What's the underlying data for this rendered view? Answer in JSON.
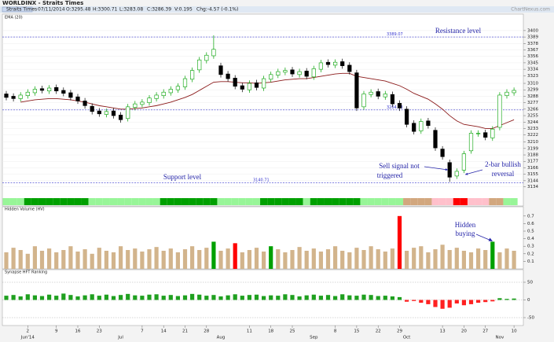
{
  "header": {
    "title": "WORLDINX - Straits Times",
    "source": "ChartNexus.com",
    "fields": [
      "Straits Times",
      "07/11/2014",
      "O:3295.48",
      "H:3300.71",
      "L:3283.08",
      "C:3286.39",
      "V:0.195",
      "Chg:-4.57 (-0.1%)"
    ]
  },
  "chart_data": [
    {
      "type": "candlestick",
      "up_color": "#00a000",
      "down_color": "#000000",
      "open": [
        3292,
        3288,
        3284,
        3289,
        3294,
        3301,
        3297,
        3303,
        3298,
        3294,
        3287,
        3280,
        3271,
        3263,
        3257,
        3263,
        3256,
        3250,
        3269,
        3274,
        3277,
        3284,
        3289,
        3294,
        3299,
        3304,
        3317,
        3333,
        3349,
        3357,
        3340,
        3326,
        3319,
        3306,
        3299,
        3311,
        3302,
        3317,
        3324,
        3329,
        3333,
        3325,
        3331,
        3321,
        3334,
        3346,
        3341,
        3347,
        3341,
        3328,
        3270,
        3291,
        3296,
        3287,
        3291,
        3276,
        3266,
        3242,
        3229,
        3246,
        3230,
        3198,
        3175,
        3152,
        3162,
        3195,
        3224,
        3226,
        3217,
        3235,
        3289,
        3294
      ],
      "high": [
        3297,
        3293,
        3295,
        3300,
        3305,
        3306,
        3307,
        3308,
        3303,
        3299,
        3292,
        3285,
        3276,
        3268,
        3267,
        3268,
        3261,
        3275,
        3280,
        3283,
        3290,
        3295,
        3300,
        3305,
        3310,
        3323,
        3337,
        3355,
        3363,
        3392,
        3345,
        3331,
        3324,
        3311,
        3315,
        3316,
        3323,
        3330,
        3335,
        3337,
        3338,
        3335,
        3336,
        3340,
        3350,
        3351,
        3351,
        3352,
        3346,
        3333,
        3297,
        3300,
        3301,
        3297,
        3296,
        3281,
        3271,
        3247,
        3250,
        3251,
        3235,
        3203,
        3180,
        3165,
        3195,
        3230,
        3230,
        3231,
        3237,
        3295,
        3300,
        3303
      ],
      "low": [
        3281,
        3279,
        3279,
        3284,
        3289,
        3293,
        3292,
        3292,
        3288,
        3281,
        3275,
        3267,
        3257,
        3253,
        3252,
        3250,
        3243,
        3245,
        3264,
        3269,
        3272,
        3279,
        3284,
        3289,
        3294,
        3299,
        3312,
        3328,
        3344,
        3352,
        3320,
        3313,
        3300,
        3295,
        3294,
        3298,
        3297,
        3312,
        3319,
        3324,
        3321,
        3320,
        3317,
        3316,
        3329,
        3337,
        3336,
        3335,
        3325,
        3263,
        3265,
        3286,
        3283,
        3282,
        3270,
        3263,
        3235,
        3223,
        3224,
        3233,
        3195,
        3180,
        3142,
        3147,
        3157,
        3190,
        3219,
        3213,
        3212,
        3230,
        3284,
        3289
      ],
      "close": [
        3286,
        3284,
        3290,
        3295,
        3300,
        3298,
        3302,
        3297,
        3293,
        3286,
        3280,
        3272,
        3262,
        3258,
        3262,
        3255,
        3248,
        3270,
        3275,
        3278,
        3285,
        3290,
        3295,
        3300,
        3305,
        3318,
        3332,
        3350,
        3358,
        3368,
        3325,
        3318,
        3305,
        3300,
        3310,
        3303,
        3318,
        3325,
        3330,
        3332,
        3326,
        3330,
        3322,
        3335,
        3345,
        3342,
        3346,
        3340,
        3330,
        3268,
        3292,
        3295,
        3288,
        3292,
        3275,
        3268,
        3240,
        3228,
        3245,
        3238,
        3200,
        3185,
        3150,
        3160,
        3190,
        3225,
        3225,
        3218,
        3232,
        3290,
        3295,
        3298
      ],
      "series": [
        {
          "name": "EMA (20)",
          "color": "#8b1a1a",
          "values": [
            null,
            null,
            3278,
            3280,
            3282,
            3283,
            3284,
            3284,
            3283,
            3282,
            3280,
            3278,
            3275,
            3272,
            3270,
            3268,
            3266,
            3266,
            3267,
            3268,
            3270,
            3272,
            3275,
            3278,
            3282,
            3286,
            3291,
            3298,
            3305,
            3312,
            3313,
            3313,
            3312,
            3311,
            3311,
            3310,
            3311,
            3312,
            3314,
            3316,
            3317,
            3318,
            3318,
            3320,
            3322,
            3324,
            3326,
            3327,
            3327,
            3322,
            3320,
            3318,
            3316,
            3314,
            3310,
            3306,
            3300,
            3293,
            3288,
            3283,
            3275,
            3266,
            3255,
            3246,
            3240,
            3238,
            3236,
            3233,
            3233,
            3238,
            3243,
            3248
          ]
        }
      ],
      "ylim": [
        3117,
        3428
      ],
      "yticks": [
        3400,
        3389,
        3378,
        3367,
        3356,
        3345,
        3334,
        3323,
        3310,
        3299,
        3288,
        3277,
        3266,
        3255,
        3244,
        3233,
        3222,
        3210,
        3199,
        3188,
        3177,
        3166,
        3155,
        3144,
        3134
      ],
      "grid": true,
      "levels": [
        3389.07,
        3264.73,
        3140.71
      ],
      "level_color": "#3a3ad0",
      "annotations": [
        "Resistance level",
        "Support level",
        "Sell signal not",
        "triggered",
        "2-bar bullish",
        "reversal"
      ],
      "strip_colors": [
        "#98f598",
        "#98f598",
        "#98f598",
        "#00a000",
        "#00a000",
        "#00a000",
        "#00a000",
        "#00a000",
        "#00a000",
        "#00a000",
        "#00a000",
        "#00a000",
        "#98f598",
        "#98f598",
        "#98f598",
        "#98f598",
        "#98f598",
        "#98f598",
        "#98f598",
        "#98f598",
        "#98f598",
        "#98f598",
        "#00a000",
        "#00a000",
        "#00a000",
        "#00a000",
        "#00a000",
        "#00a000",
        "#00a000",
        "#00a000",
        "#98f598",
        "#98f598",
        "#98f598",
        "#98f598",
        "#98f598",
        "#98f598",
        "#00a000",
        "#00a000",
        "#00a000",
        "#00a000",
        "#00a000",
        "#00a000",
        "#98f598",
        "#00a000",
        "#00a000",
        "#00a000",
        "#00a000",
        "#00a000",
        "#00a000",
        "#00a000",
        "#98f598",
        "#98f598",
        "#98f598",
        "#98f598",
        "#98f598",
        "#98f598",
        "#d2a77e",
        "#d2a77e",
        "#d2a77e",
        "#d2a77e",
        "#ffc0cb",
        "#ffc0cb",
        "#ffc0cb",
        "#ff0000",
        "#ff0000",
        "#ffc0cb",
        "#ffc0cb",
        "#ffc0cb",
        "#d2a77e",
        "#d2a77e",
        "#98f598",
        "#98f598"
      ]
    },
    {
      "type": "bar",
      "title": "Hidden Volume (HV)",
      "color": "#d2b48c",
      "highlight_colors": {
        "29": "#00a000",
        "32": "#ff0000",
        "37": "#00a000",
        "55": "#ff0000",
        "68": "#00a000"
      },
      "values": [
        0.22,
        0.28,
        0.25,
        0.2,
        0.3,
        0.24,
        0.27,
        0.22,
        0.25,
        0.3,
        0.23,
        0.26,
        0.2,
        0.28,
        0.24,
        0.22,
        0.3,
        0.25,
        0.27,
        0.23,
        0.26,
        0.29,
        0.24,
        0.27,
        0.22,
        0.26,
        0.3,
        0.25,
        0.28,
        0.36,
        0.24,
        0.27,
        0.34,
        0.22,
        0.25,
        0.28,
        0.23,
        0.3,
        0.26,
        0.22,
        0.25,
        0.29,
        0.24,
        0.27,
        0.23,
        0.26,
        0.3,
        0.24,
        0.22,
        0.28,
        0.25,
        0.3,
        0.26,
        0.23,
        0.27,
        0.7,
        0.24,
        0.28,
        0.3,
        0.22,
        0.26,
        0.32,
        0.25,
        0.28,
        0.24,
        0.22,
        0.27,
        0.25,
        0.36,
        0.22,
        0.27,
        0.24
      ],
      "ylim": [
        0,
        0.75
      ],
      "yticks": [
        0.1,
        0.2,
        0.3,
        0.4,
        0.5,
        0.6,
        0.7
      ],
      "annotations": [
        "Hidden",
        "buying"
      ]
    },
    {
      "type": "bar",
      "title": "Synapse HFT Ranking",
      "up_color": "#1fa01f",
      "down_color": "#ff2020",
      "values": [
        12,
        14,
        10,
        16,
        13,
        11,
        15,
        12,
        18,
        14,
        10,
        13,
        16,
        12,
        15,
        11,
        14,
        17,
        13,
        12,
        15,
        16,
        12,
        14,
        11,
        13,
        17,
        15,
        12,
        14,
        10,
        13,
        16,
        12,
        14,
        15,
        11,
        13,
        12,
        16,
        14,
        10,
        13,
        15,
        12,
        14,
        11,
        16,
        13,
        12,
        15,
        14,
        11,
        12,
        10,
        8,
        -5,
        -3,
        -8,
        -12,
        -20,
        -25,
        -22,
        -10,
        -15,
        -12,
        -8,
        -6,
        -4,
        5,
        3,
        4
      ],
      "ylim": [
        -70,
        70
      ],
      "yticks": [
        -50,
        0,
        50
      ],
      "categories": [
        null,
        null,
        null,
        "2",
        null,
        null,
        null,
        "9",
        null,
        null,
        "16",
        null,
        null,
        "23",
        null,
        null,
        null,
        null,
        null,
        "7",
        null,
        null,
        "14",
        null,
        null,
        "21",
        null,
        null,
        "28",
        null,
        null,
        null,
        null,
        null,
        "11",
        null,
        null,
        "18",
        null,
        null,
        "25",
        null,
        null,
        null,
        null,
        null,
        "8",
        null,
        null,
        "15",
        null,
        null,
        "22",
        null,
        null,
        "29",
        null,
        null,
        null,
        null,
        null,
        "13",
        null,
        null,
        "20",
        null,
        null,
        "27",
        null,
        null,
        null,
        "10"
      ],
      "month_labels": [
        null,
        null,
        null,
        "Jun'14",
        null,
        null,
        null,
        null,
        null,
        null,
        null,
        null,
        null,
        null,
        null,
        null,
        "Jul",
        null,
        null,
        null,
        null,
        null,
        null,
        null,
        null,
        null,
        null,
        null,
        null,
        null,
        "Aug",
        null,
        null,
        null,
        null,
        null,
        null,
        null,
        null,
        null,
        null,
        null,
        null,
        "Sep",
        null,
        null,
        null,
        null,
        null,
        null,
        null,
        null,
        null,
        null,
        null,
        null,
        "Oct",
        null,
        null,
        null,
        null,
        null,
        null,
        null,
        null,
        null,
        null,
        null,
        null,
        "Nov",
        null,
        null
      ]
    }
  ]
}
